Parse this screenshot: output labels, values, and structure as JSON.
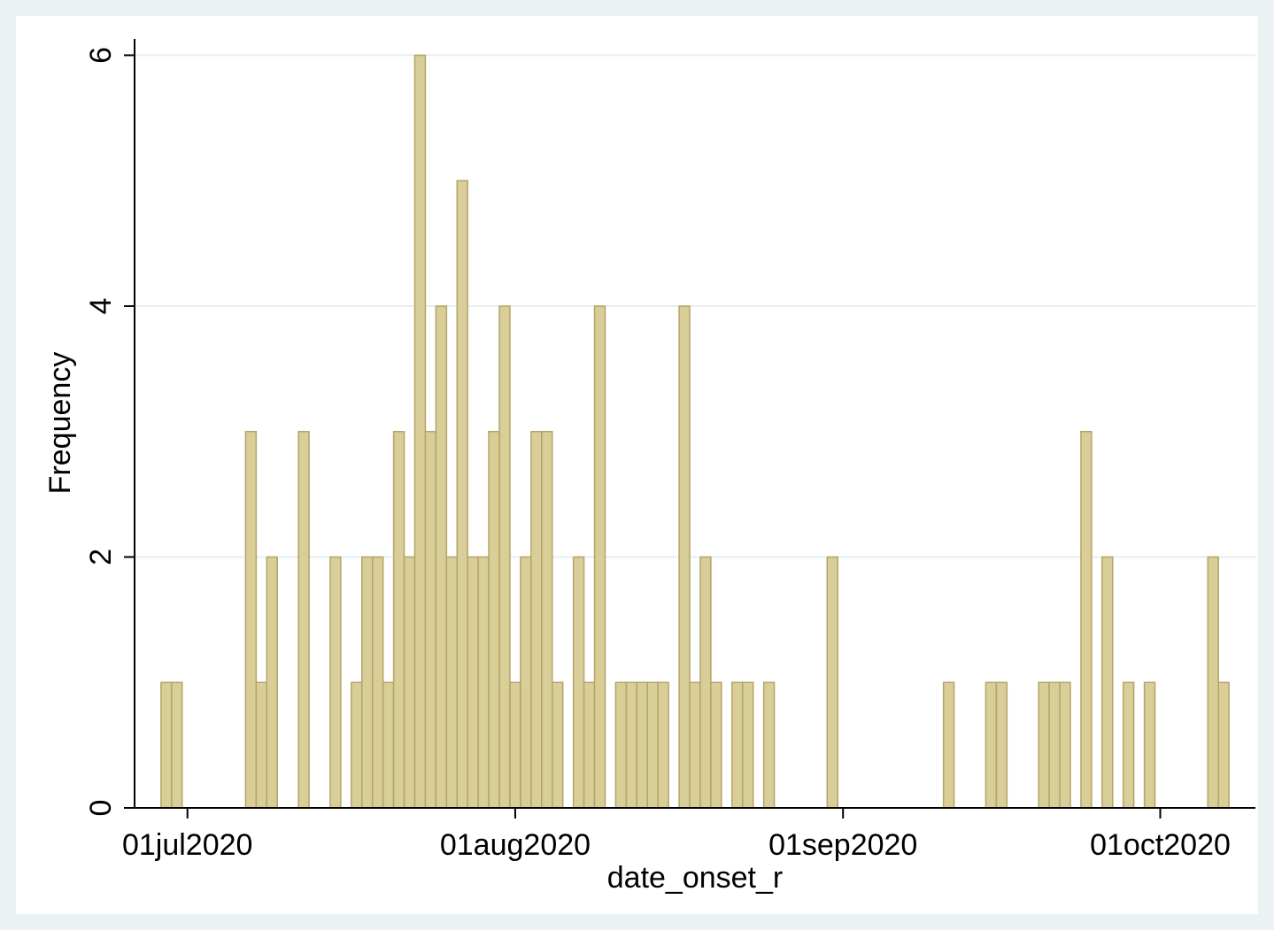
{
  "chart_data": {
    "type": "bar",
    "x_label": "date_onset_r",
    "y_label": "Frequency",
    "x": [
      "2020-06-29",
      "2020-06-30",
      "2020-07-07",
      "2020-07-08",
      "2020-07-09",
      "2020-07-12",
      "2020-07-15",
      "2020-07-17",
      "2020-07-18",
      "2020-07-19",
      "2020-07-20",
      "2020-07-21",
      "2020-07-22",
      "2020-07-23",
      "2020-07-24",
      "2020-07-25",
      "2020-07-26",
      "2020-07-27",
      "2020-07-28",
      "2020-07-29",
      "2020-07-30",
      "2020-07-31",
      "2020-08-01",
      "2020-08-02",
      "2020-08-03",
      "2020-08-04",
      "2020-08-05",
      "2020-08-07",
      "2020-08-08",
      "2020-08-09",
      "2020-08-11",
      "2020-08-12",
      "2020-08-13",
      "2020-08-14",
      "2020-08-15",
      "2020-08-17",
      "2020-08-18",
      "2020-08-19",
      "2020-08-20",
      "2020-08-22",
      "2020-08-23",
      "2020-08-25",
      "2020-08-31",
      "2020-09-11",
      "2020-09-15",
      "2020-09-16",
      "2020-09-20",
      "2020-09-21",
      "2020-09-22",
      "2020-09-24",
      "2020-09-26",
      "2020-09-28",
      "2020-09-30",
      "2020-10-06",
      "2020-10-07"
    ],
    "values": [
      1,
      1,
      3,
      1,
      2,
      3,
      2,
      1,
      2,
      2,
      1,
      3,
      2,
      6,
      3,
      4,
      2,
      5,
      2,
      2,
      3,
      4,
      1,
      2,
      3,
      3,
      1,
      2,
      1,
      4,
      1,
      1,
      1,
      1,
      1,
      4,
      1,
      2,
      1,
      1,
      1,
      1,
      2,
      1,
      1,
      1,
      1,
      1,
      1,
      3,
      2,
      1,
      1,
      2,
      1
    ],
    "color": "#d9cd98",
    "edge_color": "#b4a468",
    "xlim": [
      "2020-06-26",
      "2020-10-10"
    ],
    "xticks": [
      {
        "value": "2020-07-01",
        "label": "01jul2020"
      },
      {
        "value": "2020-08-01",
        "label": "01aug2020"
      },
      {
        "value": "2020-09-01",
        "label": "01sep2020"
      },
      {
        "value": "2020-10-01",
        "label": "01oct2020"
      }
    ],
    "ylim": [
      0,
      6.13
    ],
    "yticks": [
      0,
      2,
      4,
      6
    ],
    "grid": true
  }
}
